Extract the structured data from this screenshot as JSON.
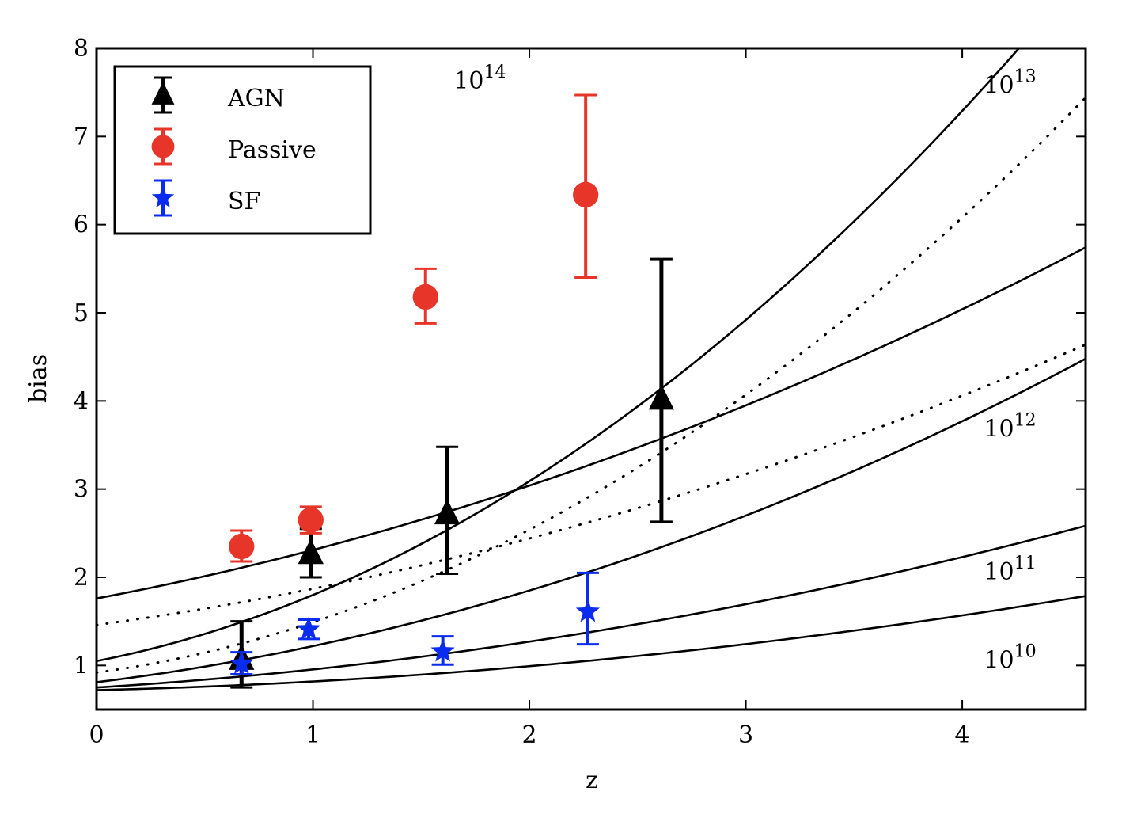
{
  "chart_data": {
    "type": "scatter",
    "title": "",
    "xlabel": "z",
    "ylabel": "bias",
    "xlim": [
      0,
      4.57
    ],
    "ylim": [
      0.5,
      8
    ],
    "xticks": [
      "0",
      "1",
      "2",
      "3",
      "4"
    ],
    "xtick_values": [
      0,
      1,
      2,
      3,
      4
    ],
    "yticks": [
      "1",
      "2",
      "3",
      "4",
      "5",
      "6",
      "7",
      "8"
    ],
    "ytick_values": [
      1,
      2,
      3,
      4,
      5,
      6,
      7,
      8
    ],
    "legend_position": "top-left",
    "series": [
      {
        "name": "AGN",
        "color": "#000000",
        "marker": "triangle",
        "points": [
          {
            "x": 0.67,
            "y": 1.07,
            "lo": 0.75,
            "hi": 1.5
          },
          {
            "x": 0.99,
            "y": 2.27,
            "lo": 2.0,
            "hi": 2.55
          },
          {
            "x": 1.62,
            "y": 2.72,
            "lo": 2.04,
            "hi": 3.48
          },
          {
            "x": 2.61,
            "y": 4.02,
            "lo": 2.63,
            "hi": 5.61
          }
        ]
      },
      {
        "name": "Passive",
        "color": "#e8352a",
        "marker": "circle",
        "points": [
          {
            "x": 0.67,
            "y": 2.35,
            "lo": 2.18,
            "hi": 2.53
          },
          {
            "x": 0.99,
            "y": 2.65,
            "lo": 2.5,
            "hi": 2.8
          },
          {
            "x": 1.52,
            "y": 5.18,
            "lo": 4.88,
            "hi": 5.5
          },
          {
            "x": 2.26,
            "y": 6.34,
            "lo": 5.4,
            "hi": 7.47
          }
        ]
      },
      {
        "name": "SF",
        "color": "#0a2cf0",
        "marker": "star",
        "points": [
          {
            "x": 0.67,
            "y": 1.02,
            "lo": 0.9,
            "hi": 1.15
          },
          {
            "x": 0.98,
            "y": 1.41,
            "lo": 1.3,
            "hi": 1.52
          },
          {
            "x": 1.6,
            "y": 1.16,
            "lo": 1.01,
            "hi": 1.33
          },
          {
            "x": 2.27,
            "y": 1.61,
            "lo": 1.24,
            "hi": 2.05
          }
        ]
      }
    ],
    "curves": [
      {
        "label": "10",
        "exp": "14",
        "style": "solid",
        "b0": 1.76,
        "b1": 0.46,
        "b2": 0.09,
        "label_at": [
          1.65,
          7.65
        ]
      },
      {
        "label": "",
        "exp": "",
        "style": "dotted",
        "b0": 1.46,
        "b1": 0.33,
        "b2": 0.08
      },
      {
        "label": "10",
        "exp": "13",
        "style": "solid",
        "b0": 1.05,
        "b1": 0.48,
        "b2": 0.27,
        "label_at": [
          4.1,
          7.6
        ]
      },
      {
        "label": "",
        "exp": "",
        "style": "dotted",
        "b0": 0.92,
        "b1": 0.33,
        "b2": 0.24
      },
      {
        "label": "10",
        "exp": "12",
        "style": "solid",
        "b0": 0.81,
        "b1": 0.3,
        "b2": 0.11,
        "label_at": [
          4.1,
          3.7
        ]
      },
      {
        "label": "10",
        "exp": "11",
        "style": "solid",
        "b0": 0.75,
        "b1": 0.15,
        "b2": 0.055,
        "label_at": [
          4.1,
          2.08
        ]
      },
      {
        "label": "10",
        "exp": "10",
        "style": "solid",
        "b0": 0.72,
        "b1": 0.06,
        "b2": 0.038,
        "label_at": [
          4.1,
          1.08
        ]
      }
    ]
  }
}
